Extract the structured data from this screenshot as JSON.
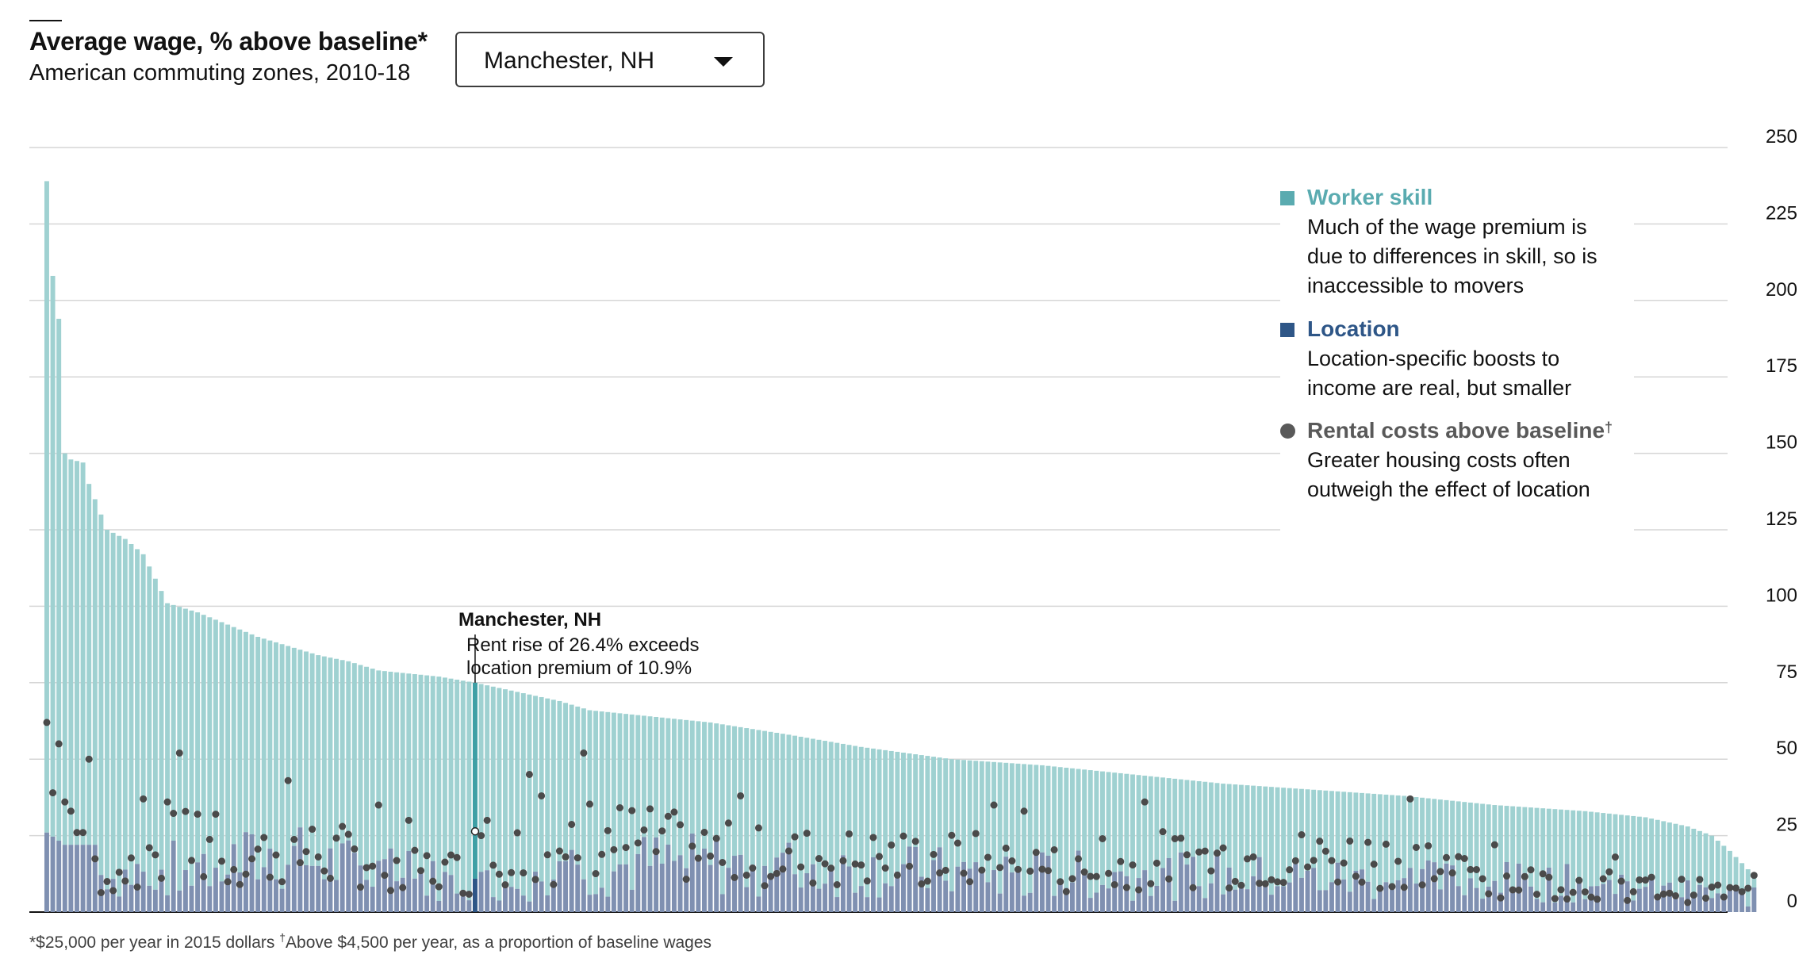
{
  "header": {
    "title": "Average wage, % above baseline*",
    "subtitle": "American commuting zones, 2010-18"
  },
  "selector": {
    "selected": "Manchester, NH"
  },
  "legend": {
    "worker_skill": {
      "title": "Worker skill",
      "desc_lines": [
        "Much of the wage premium is",
        "due to differences in skill, so is",
        "inaccessible to movers"
      ]
    },
    "location": {
      "title": "Location",
      "desc_lines": [
        "Location-specific boosts to",
        "income are real, but smaller"
      ]
    },
    "rental": {
      "title": "Rental costs above baseline",
      "title_mark": "†",
      "desc_lines": [
        "Greater housing costs often",
        "outweigh the effect of location"
      ]
    }
  },
  "annotation": {
    "title": "Manchester, NH",
    "lines": [
      "Rent rise of 26.4% exceeds",
      "location premium of 10.9%"
    ]
  },
  "footnote": {
    "part1": "*$25,000 per year in 2015 dollars ",
    "mark": "†",
    "part2": "Above $4,500 per year, as a proportion of baseline wages"
  },
  "colors": {
    "worker_skill": "#9fd1d1",
    "location": "#7f90b1",
    "highlight_bar": "#3e9fa5",
    "rent_dot": "#4a4a4a",
    "legend_skill": "#5aabb0",
    "legend_location": "#2e5687",
    "legend_rental": "#595959",
    "grid": "#d6d6d6"
  },
  "chart_data": {
    "type": "bar",
    "stacked": true,
    "orientation": "vertical, sorted descending by total wage premium",
    "ylim": [
      0,
      250
    ],
    "yticks": [
      0,
      25,
      50,
      75,
      100,
      125,
      150,
      175,
      200,
      225,
      250
    ],
    "y_axis_side": "right",
    "grid": true,
    "highlight_index": 71,
    "highlight_name": "Manchester, NH",
    "highlight_values": {
      "total": 75,
      "location": 10.9,
      "rent": 26.4
    },
    "series": [
      {
        "name": "Location",
        "description": "location-specific component of wage premium (bottom segment)"
      },
      {
        "name": "Worker skill",
        "description": "skill component of wage premium (top segment)"
      },
      {
        "name": "Rental costs above baseline",
        "description": "dot marker"
      }
    ],
    "approx_totals_by_rank": [
      [
        0,
        239
      ],
      [
        1,
        208
      ],
      [
        2,
        194
      ],
      [
        3,
        150
      ],
      [
        4,
        148
      ],
      [
        6,
        147
      ],
      [
        7,
        140
      ],
      [
        8,
        135
      ],
      [
        10,
        125
      ],
      [
        13,
        122
      ],
      [
        16,
        117
      ],
      [
        20,
        101
      ],
      [
        25,
        98
      ],
      [
        30,
        94
      ],
      [
        35,
        90
      ],
      [
        40,
        87
      ],
      [
        45,
        84
      ],
      [
        50,
        82
      ],
      [
        55,
        79
      ],
      [
        60,
        78
      ],
      [
        65,
        77
      ],
      [
        71,
        75
      ],
      [
        78,
        72
      ],
      [
        85,
        69
      ],
      [
        90,
        66
      ],
      [
        100,
        64
      ],
      [
        110,
        62
      ],
      [
        123,
        58
      ],
      [
        135,
        54
      ],
      [
        150,
        50
      ],
      [
        165,
        48
      ],
      [
        180,
        45
      ],
      [
        195,
        42
      ],
      [
        210,
        40
      ],
      [
        225,
        38
      ],
      [
        240,
        35
      ],
      [
        255,
        33
      ],
      [
        265,
        31
      ],
      [
        272,
        28
      ],
      [
        276,
        25
      ],
      [
        279,
        20
      ],
      [
        282,
        14
      ],
      [
        283,
        12
      ]
    ],
    "approx_location_by_rank": [
      [
        0,
        26
      ],
      [
        3,
        22
      ],
      [
        8,
        22
      ],
      [
        9,
        14
      ],
      [
        20,
        18
      ],
      [
        40,
        22
      ],
      [
        71,
        11
      ],
      [
        100,
        20
      ],
      [
        150,
        16
      ],
      [
        200,
        14
      ],
      [
        250,
        12
      ],
      [
        283,
        6
      ]
    ],
    "approx_rent_dots_by_rank": [
      [
        0,
        62
      ],
      [
        1,
        39
      ],
      [
        2,
        55
      ],
      [
        3,
        36
      ],
      [
        4,
        33
      ],
      [
        5,
        26
      ],
      [
        6,
        26
      ],
      [
        7,
        50
      ],
      [
        10,
        10
      ],
      [
        16,
        37
      ],
      [
        20,
        36
      ],
      [
        22,
        52
      ],
      [
        25,
        32
      ],
      [
        28,
        32
      ],
      [
        40,
        43
      ],
      [
        55,
        35
      ],
      [
        60,
        30
      ],
      [
        71,
        26
      ],
      [
        72,
        25
      ],
      [
        73,
        30
      ],
      [
        80,
        45
      ],
      [
        82,
        38
      ],
      [
        89,
        52
      ],
      [
        115,
        38
      ],
      [
        157,
        35
      ],
      [
        162,
        33
      ],
      [
        175,
        24
      ],
      [
        182,
        36
      ],
      [
        226,
        37
      ],
      [
        240,
        22
      ],
      [
        260,
        18
      ],
      [
        283,
        12
      ]
    ]
  }
}
